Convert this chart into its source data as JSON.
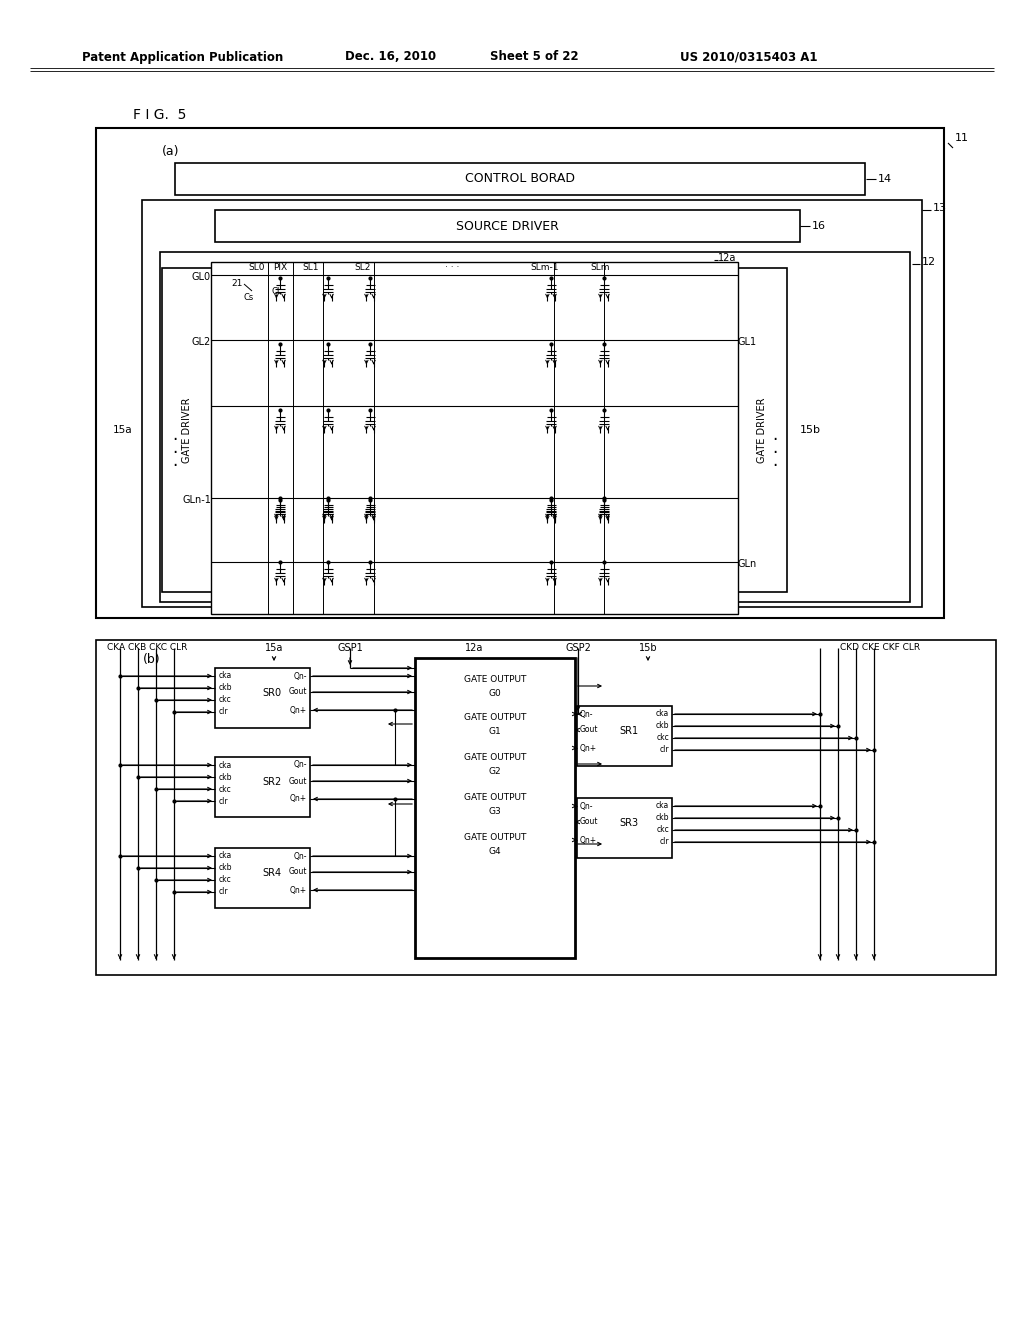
{
  "bg_color": "#ffffff",
  "header_text": "Patent Application Publication",
  "header_date": "Dec. 16, 2010",
  "header_sheet": "Sheet 5 of 22",
  "header_patent": "US 2010/0315403 A1",
  "fig_label": "F I G.  5",
  "control_board": "CONTROL BORAD",
  "source_driver": "SOURCE DRIVER",
  "gate_driver": "GATE DRIVER",
  "sl_labels": [
    "SL0",
    "PIX",
    "SL1",
    "SL2",
    "· · ·",
    "SLm-1",
    "SLm"
  ],
  "part_b_left_labels": [
    "CKA",
    "CKB",
    "CKC",
    "CLR"
  ],
  "part_b_right_labels": [
    "CKD",
    "CKE",
    "CKF",
    "CLR"
  ],
  "sr_left": [
    "SR0",
    "SR2",
    "SR4"
  ],
  "sr_right": [
    "SR1",
    "SR3"
  ],
  "gate_outputs": [
    "G0",
    "G1",
    "G2",
    "G3",
    "G4"
  ],
  "sr_inputs": [
    "cka",
    "ckb",
    "ckc",
    "clr"
  ],
  "sr_outputs_left": [
    "Qn-",
    "Gout",
    "Qn+"
  ],
  "sr_outputs_right": [
    "Qn-",
    "Gout",
    "Qn+"
  ]
}
